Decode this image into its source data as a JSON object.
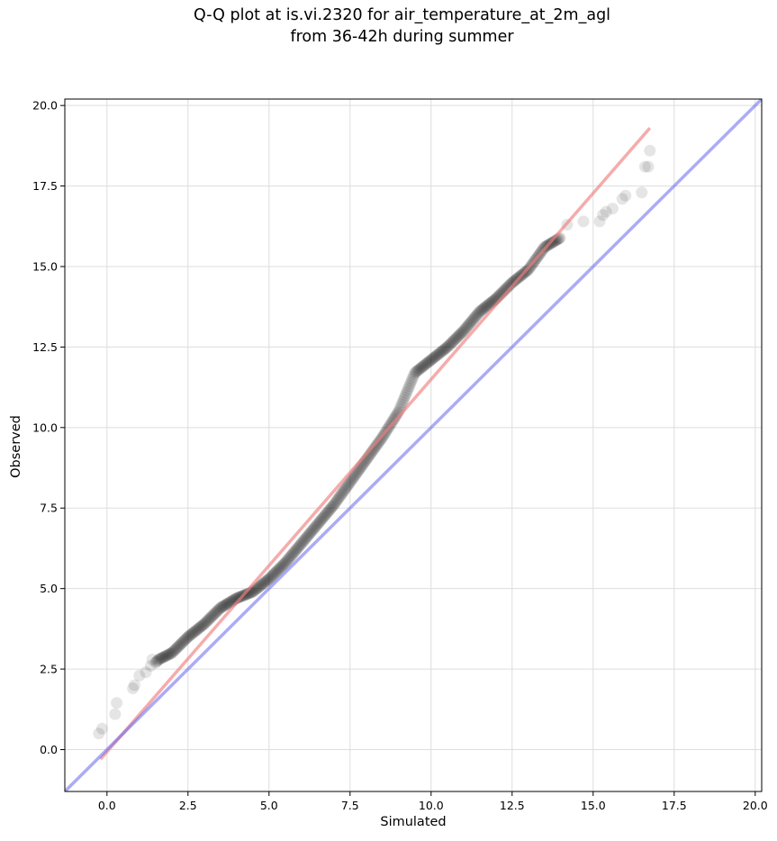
{
  "figure": {
    "title_line1": "Q-Q plot at is.vi.2320 for air_temperature_at_2m_agl",
    "title_line2": "from 36-42h during summer"
  },
  "chart_data": {
    "type": "scatter",
    "title": "Q-Q plot at is.vi.2320 for air_temperature_at_2m_agl\nfrom 36-42h during summer",
    "xlabel": "Simulated",
    "ylabel": "Observed",
    "xlim": [
      -1.3,
      20.2
    ],
    "ylim": [
      -1.3,
      20.2
    ],
    "xticks": [
      0.0,
      2.5,
      5.0,
      7.5,
      10.0,
      12.5,
      15.0,
      17.5,
      20.0
    ],
    "yticks": [
      0.0,
      2.5,
      5.0,
      7.5,
      10.0,
      12.5,
      15.0,
      17.5,
      20.0
    ],
    "xtick_labels": [
      "0.0",
      "2.5",
      "5.0",
      "7.5",
      "10.0",
      "12.5",
      "15.0",
      "17.5",
      "20.0"
    ],
    "ytick_labels": [
      "0.0",
      "2.5",
      "5.0",
      "7.5",
      "10.0",
      "12.5",
      "15.0",
      "17.5",
      "20.0"
    ],
    "grid": true,
    "colors": {
      "points": "#000000",
      "fit_line": "#f08080",
      "identity_line": "#6666ee",
      "grid": "#dddddd"
    },
    "quantile_anchors": {
      "x": [
        -0.2,
        0.3,
        0.8,
        1.2,
        1.6,
        2.0,
        2.5,
        3.0,
        3.5,
        4.0,
        4.5,
        5.0,
        5.5,
        6.0,
        6.5,
        7.0,
        7.5,
        8.0,
        8.5,
        9.0,
        9.5,
        10.0,
        10.5,
        11.0,
        11.5,
        12.0,
        12.5,
        13.0,
        13.5,
        14.0
      ],
      "y": [
        0.5,
        1.4,
        2.0,
        2.4,
        2.8,
        3.0,
        3.5,
        3.9,
        4.4,
        4.7,
        4.9,
        5.3,
        5.8,
        6.4,
        7.0,
        7.6,
        8.3,
        9.0,
        9.7,
        10.5,
        11.7,
        12.1,
        12.5,
        13.0,
        13.6,
        14.0,
        14.5,
        14.9,
        15.6,
        15.9
      ]
    },
    "sparse_points": {
      "x": [
        -0.25,
        -0.15,
        0.25,
        0.3,
        0.8,
        0.85,
        1.0,
        1.2,
        1.35,
        1.4,
        14.2,
        14.7,
        15.2,
        15.3,
        15.4,
        15.6,
        15.9,
        16.0,
        16.5,
        16.6,
        16.7,
        16.75
      ],
      "y": [
        0.5,
        0.65,
        1.1,
        1.45,
        1.9,
        2.0,
        2.3,
        2.4,
        2.6,
        2.8,
        16.3,
        16.4,
        16.4,
        16.6,
        16.7,
        16.8,
        17.1,
        17.2,
        17.3,
        18.1,
        18.1,
        18.6
      ]
    },
    "dense_range": [
      1.5,
      14.0
    ],
    "dense_step": 0.03,
    "fit_line": {
      "x": [
        -0.2,
        16.75
      ],
      "y": [
        -0.3,
        19.3
      ]
    },
    "identity_line": {
      "x": [
        -1.3,
        20.2
      ],
      "y": [
        -1.3,
        20.2
      ]
    }
  }
}
